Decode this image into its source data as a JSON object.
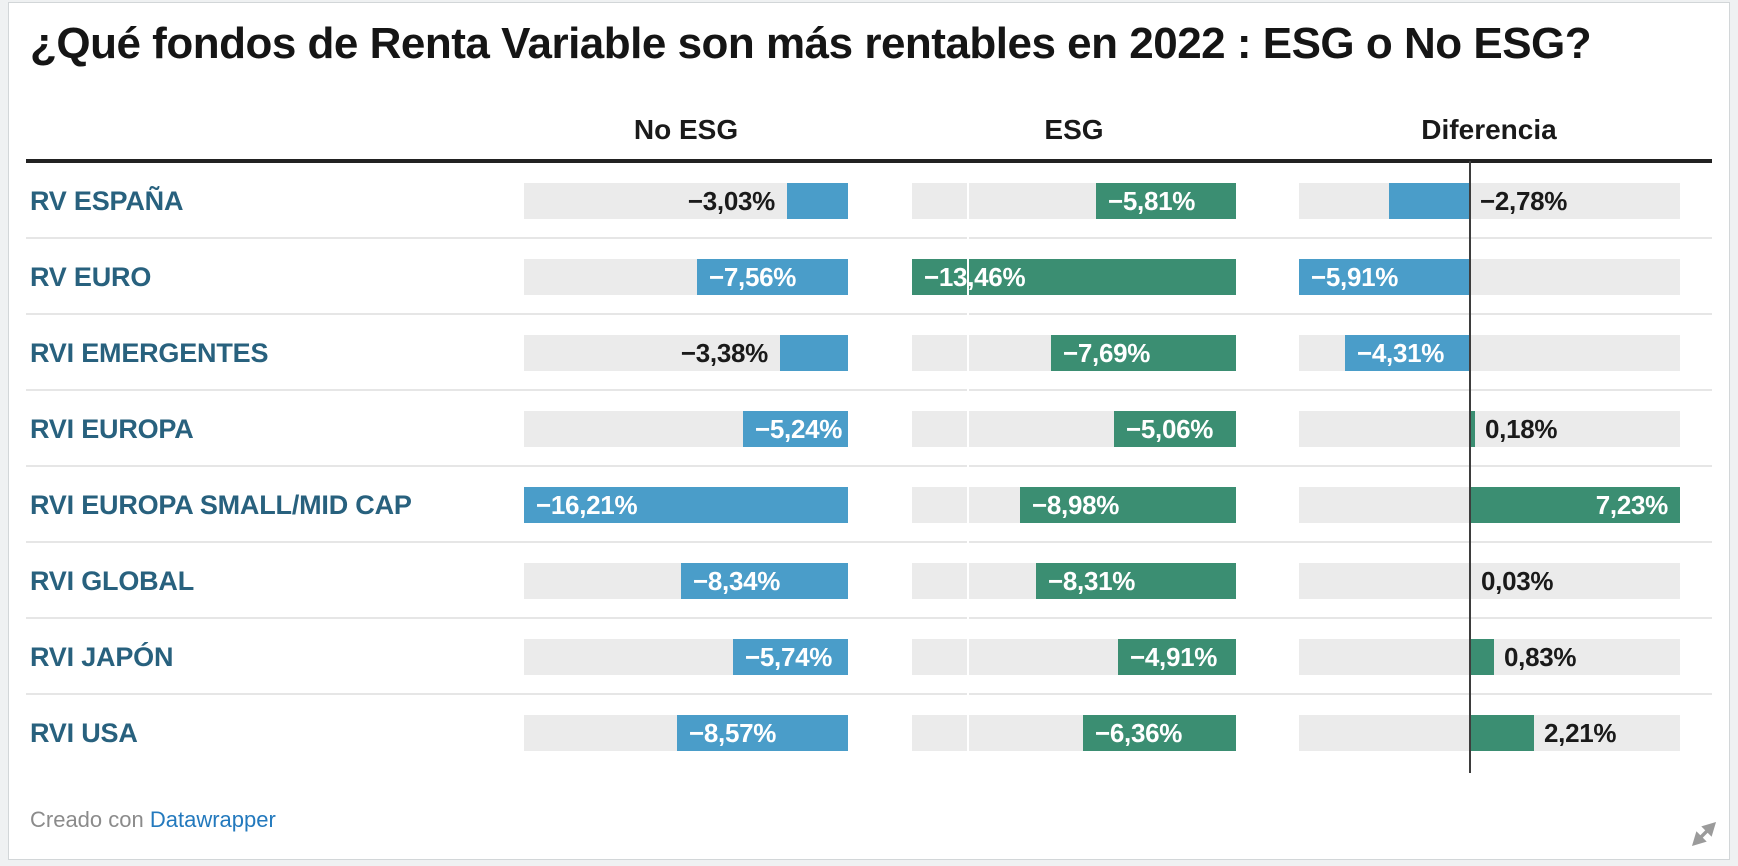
{
  "title": "¿Qué fondos de Renta Variable son más rentables en 2022 : ESG o No ESG?",
  "footer": {
    "prefix": "Creado con ",
    "link": "Datawrapper"
  },
  "colors": {
    "no_esg_bar": "#4a9dc9",
    "esg_bar": "#3b8e72",
    "diff_negative_bar": "#4a9dc9",
    "diff_positive_bar": "#3b8e72",
    "track": "#ebebeb",
    "row_label": "#28617e",
    "link_blue": "#2379bd",
    "label_inside": "#ffffff",
    "label_outside": "#1a1a1a"
  },
  "chart_data": {
    "type": "bar",
    "title": "¿Qué fondos de Renta Variable son más rentables en 2022 : ESG o No ESG?",
    "columns": [
      "No ESG",
      "ESG",
      "Diferencia"
    ],
    "categories": [
      "RV ESPAÑA",
      "RV EURO",
      "RVI EMERGENTES",
      "RVI EUROPA",
      "RVI EUROPA SMALL/MID CAP",
      "RVI GLOBAL",
      "RVI JAPÓN",
      "RVI USA"
    ],
    "series": [
      {
        "name": "No ESG",
        "values": [
          -3.03,
          -7.56,
          -3.38,
          -5.24,
          -16.21,
          -8.34,
          -5.74,
          -8.57
        ],
        "labels": [
          "−3,03%",
          "−7,56%",
          "−3,38%",
          "−5,24%",
          "−16,21%",
          "−8,34%",
          "−5,74%",
          "−8,57%"
        ],
        "range": [
          -16.21,
          0
        ]
      },
      {
        "name": "ESG",
        "values": [
          -5.81,
          -13.46,
          -7.69,
          -5.06,
          -8.98,
          -8.31,
          -4.91,
          -6.36
        ],
        "labels": [
          "−5,81%",
          "−13,46%",
          "−7,69%",
          "−5,06%",
          "−8,98%",
          "−8,31%",
          "−4,91%",
          "−6,36%"
        ],
        "range": [
          -13.46,
          0
        ]
      },
      {
        "name": "Diferencia",
        "values": [
          -2.78,
          -5.91,
          -4.31,
          0.18,
          7.23,
          0.03,
          0.83,
          2.21
        ],
        "labels": [
          "−2,78%",
          "−5,91%",
          "−4,31%",
          "0,18%",
          "7,23%",
          "0,03%",
          "0,83%",
          "2,21%"
        ],
        "range": [
          -5.91,
          7.23
        ]
      }
    ],
    "legend_position": "none",
    "grid": "off"
  }
}
